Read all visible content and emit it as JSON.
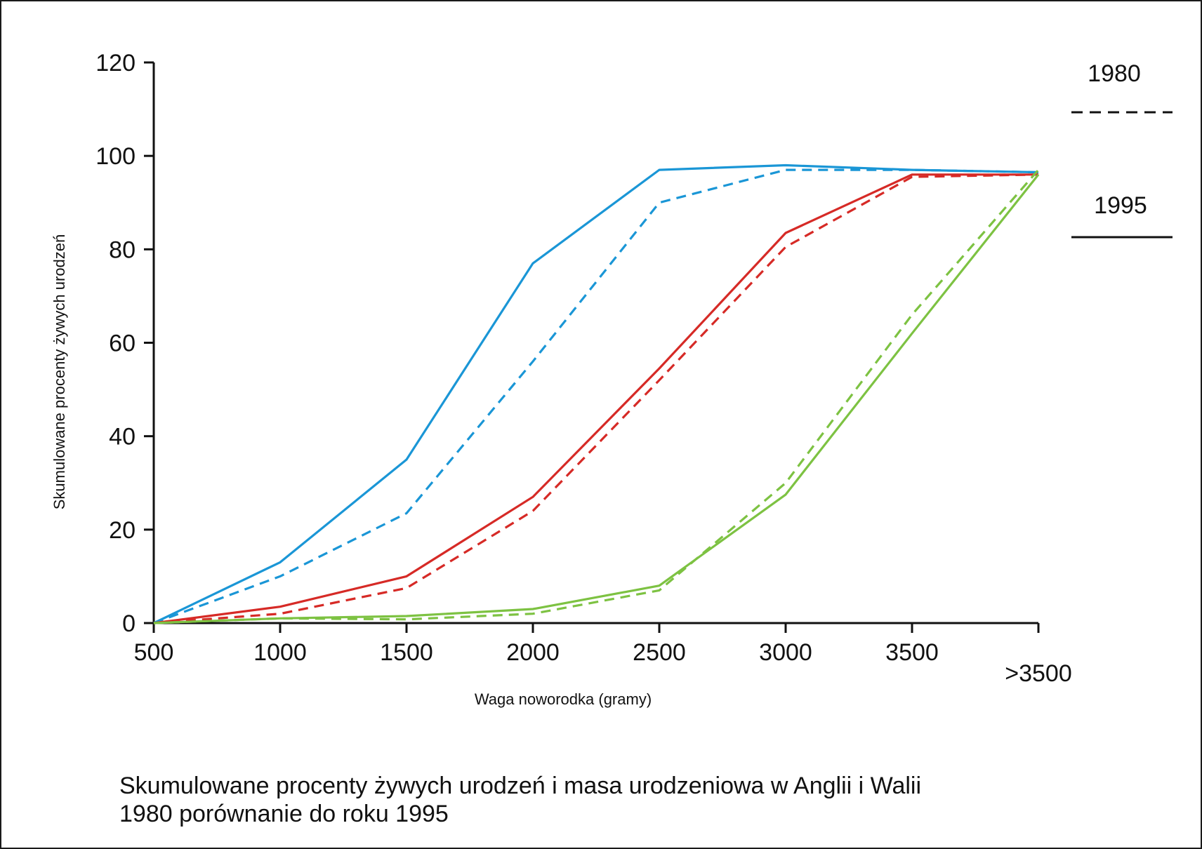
{
  "chart_data": {
    "type": "line",
    "ylabel": "Skumulowane procenty żywych urodzeń",
    "xlabel": "Waga noworodka (gramy)",
    "x": [
      500,
      1000,
      1500,
      2000,
      2500,
      3000,
      3500,
      4000
    ],
    "x_tick_labels": [
      "500",
      "1000",
      "1500",
      "2000",
      "2500",
      "3000",
      "3500",
      ">3500"
    ],
    "xlim": [
      500,
      4000
    ],
    "ylim": [
      0,
      120
    ],
    "y_ticks": [
      0,
      20,
      40,
      60,
      80,
      100,
      120
    ],
    "grid": false,
    "legend_position": "right",
    "legend": [
      {
        "label": "1980",
        "style": "dashed"
      },
      {
        "label": "1995",
        "style": "solid"
      }
    ],
    "series": [
      {
        "color": "#1a96d6",
        "style": "solid",
        "year": "1995",
        "values": [
          0,
          13,
          35,
          77,
          97,
          98,
          97,
          96.5
        ]
      },
      {
        "color": "#1a96d6",
        "style": "dashed",
        "year": "1980",
        "values": [
          0,
          10,
          23.5,
          56,
          90,
          97,
          97,
          96.5
        ]
      },
      {
        "color": "#d62a26",
        "style": "solid",
        "year": "1995",
        "values": [
          0,
          3.5,
          10,
          27,
          54.5,
          83.5,
          96,
          96
        ]
      },
      {
        "color": "#d62a26",
        "style": "dashed",
        "year": "1980",
        "values": [
          0,
          2,
          7.5,
          24,
          52,
          80.5,
          95.5,
          96
        ]
      },
      {
        "color": "#7dc242",
        "style": "solid",
        "year": "1995",
        "values": [
          0,
          1,
          1.5,
          3,
          8,
          27.5,
          62,
          96
        ]
      },
      {
        "color": "#7dc242",
        "style": "dashed",
        "year": "1980",
        "values": [
          0,
          1,
          0.8,
          2,
          7,
          30,
          66,
          97
        ]
      }
    ]
  },
  "caption": {
    "line1": "Skumulowane procenty żywych urodzeń i masa urodzeniowa w Anglii i Walii",
    "line2": "1980 porównanie do roku 1995"
  }
}
